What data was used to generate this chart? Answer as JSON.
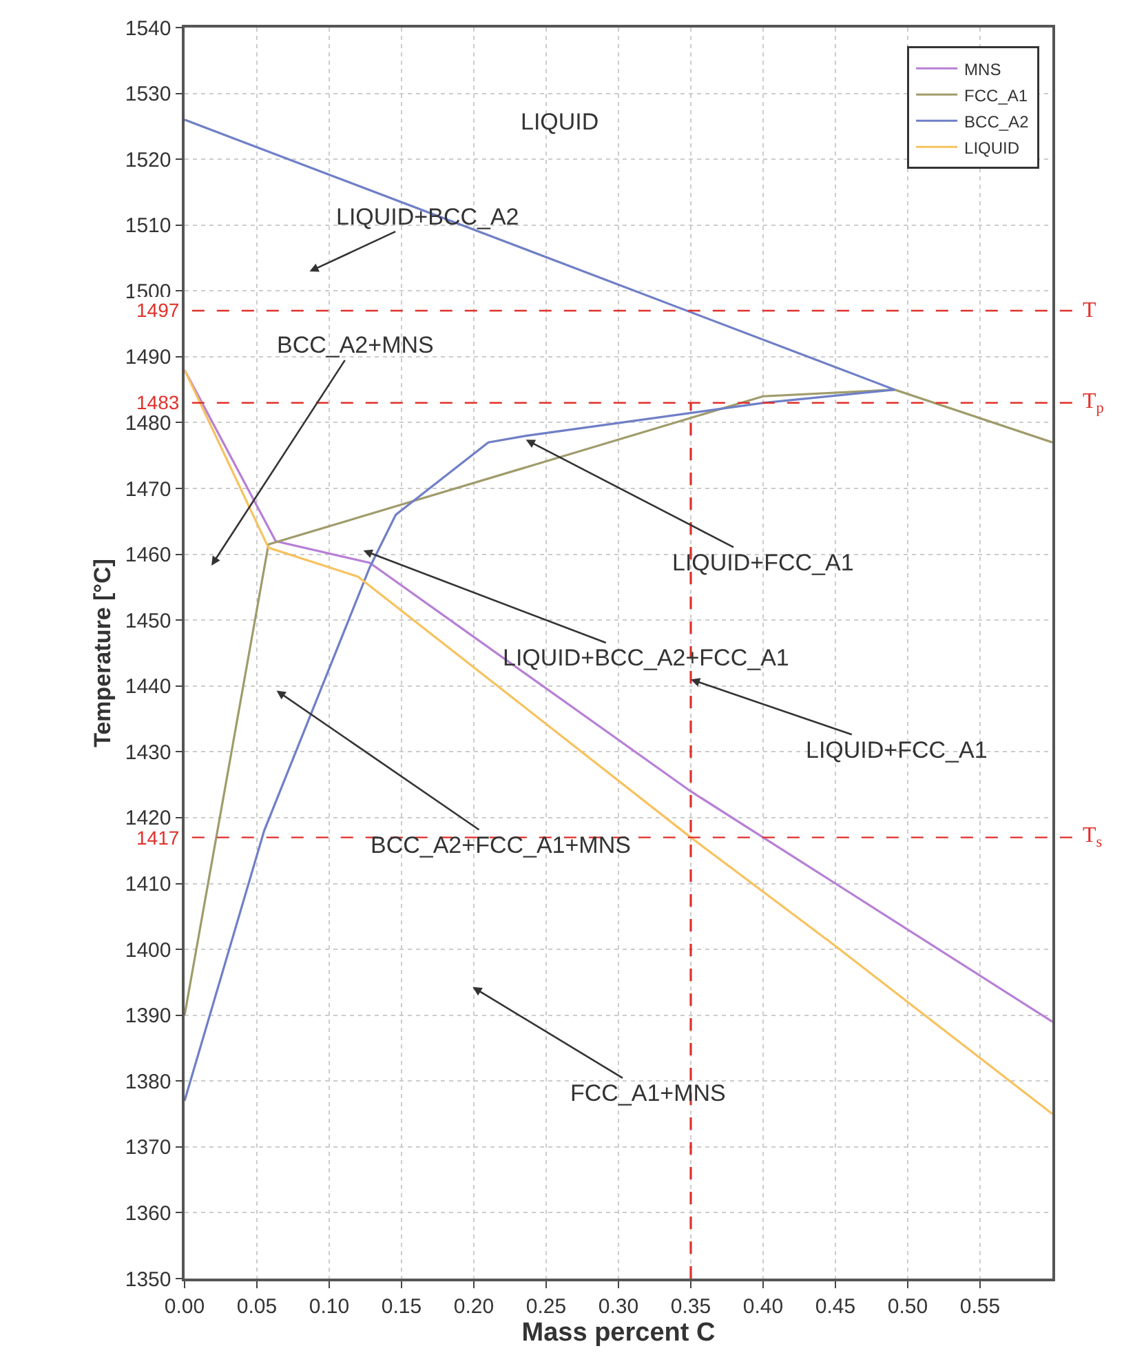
{
  "chart_data": {
    "type": "line",
    "xlabel": "Mass percent C",
    "ylabel": "Temperature [°C]",
    "xlim": [
      0,
      0.6
    ],
    "ylim": [
      1350,
      1540
    ],
    "xticks": [
      {
        "value": 0,
        "label": "0.00"
      },
      0.05,
      {
        "value": 0.1,
        "label": "0.10"
      },
      0.15,
      {
        "value": 0.2,
        "label": "0.20"
      },
      0.25,
      {
        "value": 0.3,
        "label": "0.30"
      },
      0.35,
      {
        "value": 0.4,
        "label": "0.40"
      },
      0.45,
      {
        "value": 0.5,
        "label": "0.50"
      },
      0.55
    ],
    "yticks": [
      1350,
      1360,
      1370,
      1380,
      1390,
      1400,
      1410,
      1420,
      1430,
      1440,
      1450,
      1460,
      1470,
      1480,
      1490,
      1500,
      1510,
      1520,
      1530,
      1540
    ],
    "grid": true,
    "legend": "top right",
    "marker": "none",
    "line_style": "solid",
    "series": [
      {
        "name": "MNS",
        "color": "#b77fd6",
        "x": [
          0,
          0.063,
          0.128,
          0.35,
          0.45,
          0.6
        ],
        "values": [
          1488,
          1462,
          1458.7,
          1424,
          1410,
          1389
        ]
      },
      {
        "name": "FCC_A1",
        "color": "#a09b6a",
        "x": [
          0,
          0.058,
          0.4,
          0.491,
          0.6
        ],
        "values": [
          1390,
          1461.5,
          1484,
          1485,
          1477
        ]
      },
      {
        "name": "BCC_A2",
        "color": "#6f7fc7",
        "x": [
          0,
          0.491,
          0.4,
          0.236,
          0.21,
          0.146,
          0.128,
          0.055,
          0
        ],
        "values": [
          1526,
          1485,
          1483,
          1478,
          1477,
          1466,
          1458,
          1418,
          1377
        ]
      },
      {
        "name": "LIQUID",
        "color": "#f7c25f",
        "x": [
          0,
          0.058,
          0.12,
          0.35,
          0.45,
          0.6
        ],
        "values": [
          1488,
          1461,
          1456.6,
          1417,
          1400.5,
          1375
        ]
      },
      {
        "color": "#e0302a",
        "line_style": "dashed",
        "x": [
          0.35,
          0.35
        ],
        "values": [
          1350,
          1483
        ]
      }
    ],
    "ref_lines": [
      {
        "axis": "y",
        "value": 1497,
        "label": "T",
        "color": "#e0302a",
        "line_style": "dashed"
      },
      {
        "axis": "y",
        "value": 1483,
        "label": "T$_{p}$",
        "color": "#e0302a",
        "line_style": "dashed"
      },
      {
        "axis": "y",
        "value": 1417,
        "label": "T$_{s}$",
        "color": "#e0302a",
        "line_style": "dashed"
      }
    ],
    "annotations": [
      "LIQUID",
      "LIQUID+BCC_A2",
      "BCC_A2+MNS",
      {
        "text": "LIQUID+FCC_A1",
        "x": 0.236,
        "y": 1477.4
      },
      "LIQUID+BCC_A2+FCC_A1",
      {
        "text": "LIQUID+FCC_A1",
        "x": 0.35,
        "y": 1441
      },
      "BCC_A2+FCC_A1+MNS",
      "FCC_A1+MNS",
      {
        "text": "1497",
        "x": 0,
        "y": 1497
      },
      {
        "text": "1483",
        "x": 0,
        "y": 1483
      },
      {
        "text": "1417",
        "x": 0,
        "y": 1417
      }
    ]
  }
}
